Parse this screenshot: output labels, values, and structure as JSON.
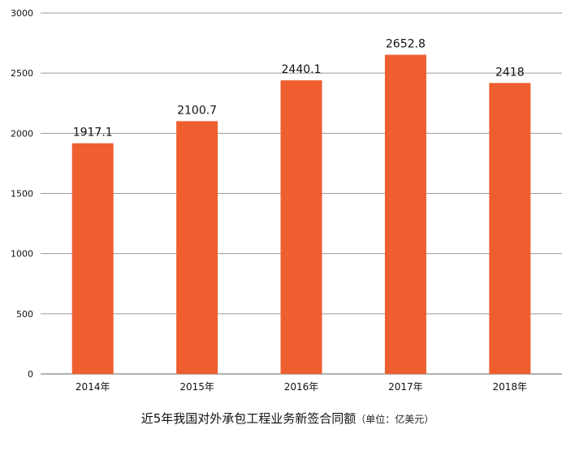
{
  "chart_data": {
    "type": "bar",
    "categories": [
      "2014年",
      "2015年",
      "2016年",
      "2017年",
      "2018年"
    ],
    "values": [
      1917.1,
      2100.7,
      2440.1,
      2652.8,
      2418
    ],
    "value_labels": [
      "1917.1",
      "2100.7",
      "2440.1",
      "2652.8",
      "2418"
    ],
    "title": "近5年我国对外承包工程业务新签合同额",
    "unit_note": "（单位：亿美元）",
    "ylim": [
      0,
      3000
    ],
    "yticks": [
      0,
      500,
      1000,
      1500,
      2000,
      2500,
      3000
    ],
    "grid": true,
    "bar_color": "#EE5E2E"
  }
}
